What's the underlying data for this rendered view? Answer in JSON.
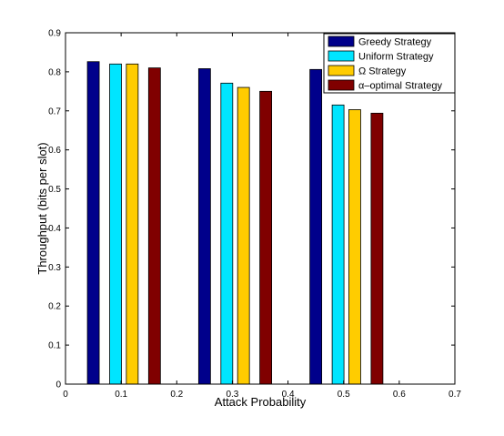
{
  "chart_data": {
    "type": "bar",
    "title": "",
    "xlabel": "Attack Probability",
    "ylabel": "Throughput (bits per slot)",
    "xlim": [
      0,
      0.7
    ],
    "ylim": [
      0,
      0.9
    ],
    "x_ticks": [
      "0",
      "0.1",
      "0.2",
      "0.3",
      "0.4",
      "0.5",
      "0.6",
      "0.7"
    ],
    "y_ticks": [
      "0",
      "0.1",
      "0.2",
      "0.3",
      "0.4",
      "0.5",
      "0.6",
      "0.7",
      "0.8",
      "0.9"
    ],
    "grid": false,
    "legend_position": "top-right",
    "categories": [
      0.1,
      0.3,
      0.5
    ],
    "series": [
      {
        "name": "Greedy Strategy",
        "color": "#00008b",
        "x": [
          0.05,
          0.25,
          0.45
        ],
        "values": [
          0.826,
          0.808,
          0.806
        ]
      },
      {
        "name": "Uniform Strategy",
        "color": "#00e5ff",
        "x": [
          0.09,
          0.29,
          0.49
        ],
        "values": [
          0.82,
          0.771,
          0.715
        ]
      },
      {
        "name": "Ω Strategy",
        "color": "#ffcc00",
        "x": [
          0.12,
          0.32,
          0.52
        ],
        "values": [
          0.82,
          0.76,
          0.703
        ]
      },
      {
        "name": "α–optimal Strategy",
        "color": "#800000",
        "x": [
          0.16,
          0.36,
          0.56
        ],
        "values": [
          0.81,
          0.75,
          0.694
        ]
      }
    ]
  }
}
